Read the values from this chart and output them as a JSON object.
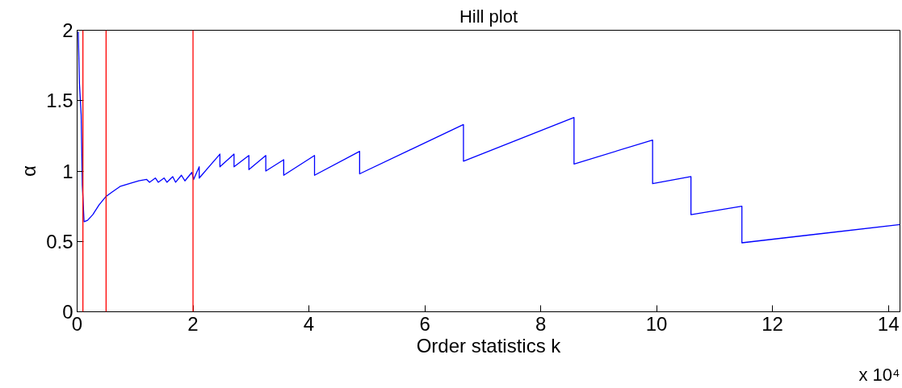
{
  "chart_data": {
    "type": "line",
    "title": "Hill plot",
    "xlabel": "Order statistics k",
    "ylabel": "α",
    "annotations": [
      "x 10⁴"
    ],
    "series": [
      {
        "color": "#0000ff",
        "x": [
          0.02,
          0.04,
          0.07,
          0.09,
          0.12,
          0.18,
          0.27,
          0.38,
          0.5,
          0.6,
          0.74,
          0.9,
          1.065,
          1.2,
          1.25,
          1.35,
          1.4,
          1.5,
          1.55,
          1.65,
          1.7,
          1.8,
          1.86,
          1.98,
          2.01,
          2.107,
          2.107,
          2.464,
          2.464,
          2.708,
          2.708,
          2.964,
          2.964,
          3.256,
          3.256,
          3.565,
          3.565,
          4.097,
          4.097,
          4.875,
          4.875,
          6.667,
          6.667,
          8.575,
          8.575,
          9.931,
          9.931,
          10.593,
          10.593,
          11.472,
          11.472,
          14.2
        ],
        "values": [
          1.99,
          1.62,
          1.4,
          0.9,
          0.64,
          0.65,
          0.69,
          0.76,
          0.82,
          0.85,
          0.89,
          0.91,
          0.93,
          0.94,
          0.92,
          0.95,
          0.92,
          0.95,
          0.92,
          0.96,
          0.92,
          0.97,
          0.93,
          0.99,
          0.94,
          1.03,
          0.95,
          1.12,
          1.03,
          1.12,
          1.03,
          1.11,
          1.01,
          1.11,
          1.0,
          1.08,
          0.97,
          1.11,
          0.97,
          1.14,
          0.98,
          1.33,
          1.07,
          1.38,
          1.05,
          1.22,
          0.91,
          0.96,
          0.69,
          0.75,
          0.49,
          0.62
        ]
      }
    ],
    "ref_lines": [
      {
        "axis": "x",
        "value": 0.1,
        "color": "#ff0000"
      },
      {
        "axis": "x",
        "value": 0.5,
        "color": "#ff0000"
      },
      {
        "axis": "x",
        "value": 2,
        "color": "#ff0000"
      }
    ],
    "xlim": [
      0,
      14.2
    ],
    "xticks": [
      0,
      2,
      4,
      6,
      8,
      10,
      12,
      14
    ],
    "ylim": [
      0,
      2
    ],
    "yticks": [
      0,
      0.5,
      1,
      1.5,
      2
    ],
    "grid": false
  }
}
